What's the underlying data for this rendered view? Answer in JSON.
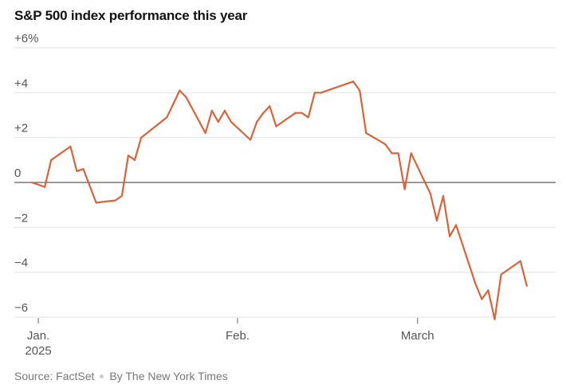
{
  "title": "S&P 500 index performance this year",
  "footer": {
    "source": "Source: FactSet",
    "credit": "By The New York Times"
  },
  "colors": {
    "line": "#d8643a",
    "grid": "#e2e2e2",
    "zero": "#333333",
    "text": "#555555"
  },
  "chart_data": {
    "type": "line",
    "title": "S&P 500 index performance this year",
    "xlabel": "",
    "ylabel": "",
    "xlim": [
      "2024-12-31",
      "2025-03-21"
    ],
    "ylim": [
      -6,
      6
    ],
    "grid": true,
    "y_ticks": [
      {
        "value": 6,
        "label": "+6%"
      },
      {
        "value": 4,
        "label": "+4"
      },
      {
        "value": 2,
        "label": "+2"
      },
      {
        "value": 0,
        "label": "0"
      },
      {
        "value": -2,
        "label": "−2"
      },
      {
        "value": -4,
        "label": "−4"
      },
      {
        "value": -6,
        "label": "−6"
      }
    ],
    "x_ticks": [
      {
        "date": "2025-01-01",
        "label": "Jan.",
        "sublabel": "2025"
      },
      {
        "date": "2025-02-01",
        "label": "Feb.",
        "sublabel": ""
      },
      {
        "date": "2025-03-01",
        "label": "March",
        "sublabel": ""
      }
    ],
    "series": [
      {
        "points": [
          [
            "2024-12-31",
            0.0
          ],
          [
            "2025-01-02",
            -0.2
          ],
          [
            "2025-01-03",
            1.0
          ],
          [
            "2025-01-06",
            1.6
          ],
          [
            "2025-01-07",
            0.5
          ],
          [
            "2025-01-08",
            0.6
          ],
          [
            "2025-01-10",
            -0.9
          ],
          [
            "2025-01-13",
            -0.8
          ],
          [
            "2025-01-14",
            -0.6
          ],
          [
            "2025-01-15",
            1.2
          ],
          [
            "2025-01-16",
            1.0
          ],
          [
            "2025-01-17",
            2.0
          ],
          [
            "2025-01-21",
            2.9
          ],
          [
            "2025-01-22",
            3.5
          ],
          [
            "2025-01-23",
            4.1
          ],
          [
            "2025-01-24",
            3.8
          ],
          [
            "2025-01-27",
            2.2
          ],
          [
            "2025-01-28",
            3.2
          ],
          [
            "2025-01-29",
            2.7
          ],
          [
            "2025-01-30",
            3.2
          ],
          [
            "2025-01-31",
            2.7
          ],
          [
            "2025-02-03",
            1.9
          ],
          [
            "2025-02-04",
            2.7
          ],
          [
            "2025-02-05",
            3.1
          ],
          [
            "2025-02-06",
            3.4
          ],
          [
            "2025-02-07",
            2.5
          ],
          [
            "2025-02-10",
            3.1
          ],
          [
            "2025-02-11",
            3.1
          ],
          [
            "2025-02-12",
            2.9
          ],
          [
            "2025-02-13",
            4.0
          ],
          [
            "2025-02-14",
            4.0
          ],
          [
            "2025-02-18",
            4.4
          ],
          [
            "2025-02-19",
            4.5
          ],
          [
            "2025-02-20",
            4.1
          ],
          [
            "2025-02-21",
            2.2
          ],
          [
            "2025-02-24",
            1.7
          ],
          [
            "2025-02-25",
            1.3
          ],
          [
            "2025-02-26",
            1.3
          ],
          [
            "2025-02-27",
            -0.3
          ],
          [
            "2025-02-28",
            1.3
          ],
          [
            "2025-03-03",
            -0.5
          ],
          [
            "2025-03-04",
            -1.7
          ],
          [
            "2025-03-05",
            -0.6
          ],
          [
            "2025-03-06",
            -2.4
          ],
          [
            "2025-03-07",
            -1.9
          ],
          [
            "2025-03-10",
            -4.5
          ],
          [
            "2025-03-11",
            -5.2
          ],
          [
            "2025-03-12",
            -4.8
          ],
          [
            "2025-03-13",
            -6.1
          ],
          [
            "2025-03-14",
            -4.1
          ],
          [
            "2025-03-17",
            -3.5
          ],
          [
            "2025-03-18",
            -4.6
          ]
        ]
      }
    ]
  }
}
